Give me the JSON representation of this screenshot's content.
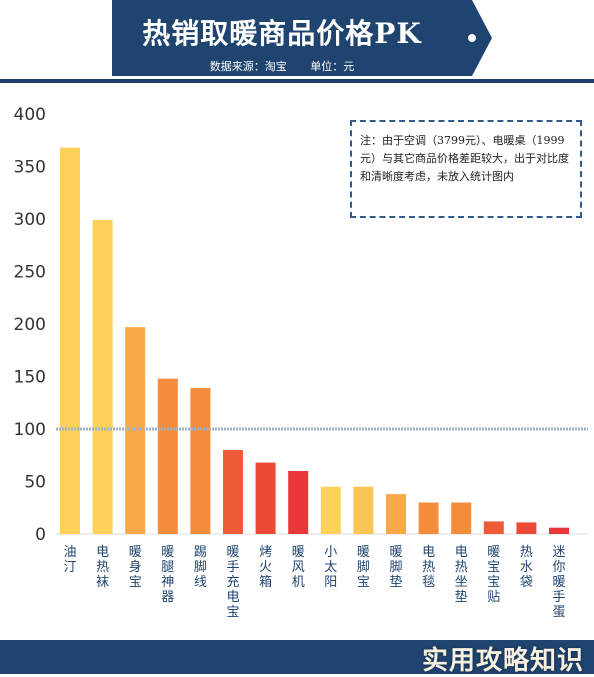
{
  "header": {
    "title": "热销取暖商品价格PK",
    "source": "数据来源：淘宝",
    "unit": "单位：元"
  },
  "note": "注：由于空调（3799元）、电暖桌（1999元）与其它商品价格差距较大，出于对比度和清晰度考虑，未放入统计图内",
  "watermark": "实用攻略知识",
  "colors": {
    "navy": "#1f4470",
    "bar_yellow": "#fbd15a",
    "bar_orange": "#f48c3b",
    "bar_red": "#e8363a",
    "reference_line": "#9fb3c8"
  },
  "chart_data": {
    "type": "bar",
    "categories": [
      "油汀",
      "电热袜",
      "暖身宝",
      "暖腿神器",
      "踢脚线",
      "暖手充电宝",
      "烤火箱",
      "暖风机",
      "小太阳",
      "暖脚宝",
      "暖脚垫",
      "电热毯",
      "电热坐垫",
      "暖宝宝贴",
      "热水袋",
      "迷你暖手蛋"
    ],
    "values": [
      368,
      299,
      197,
      148,
      139,
      80,
      68,
      60,
      45,
      45,
      38,
      30,
      30,
      12,
      11,
      6
    ],
    "bar_colors": [
      "#fbd15a",
      "#fbd15a",
      "#f9a94a",
      "#f48c3b",
      "#f48c3b",
      "#ee5b37",
      "#ec4a36",
      "#e8363a",
      "#fbd15a",
      "#fbc556",
      "#f9a94a",
      "#f48c3b",
      "#f48c3b",
      "#ee5b37",
      "#ec4a36",
      "#e8363a"
    ],
    "yticks": [
      0,
      50,
      100,
      150,
      200,
      250,
      300,
      350,
      400
    ],
    "ylim": [
      0,
      400
    ],
    "reference_value": 100,
    "grid": false,
    "legend": "none"
  }
}
